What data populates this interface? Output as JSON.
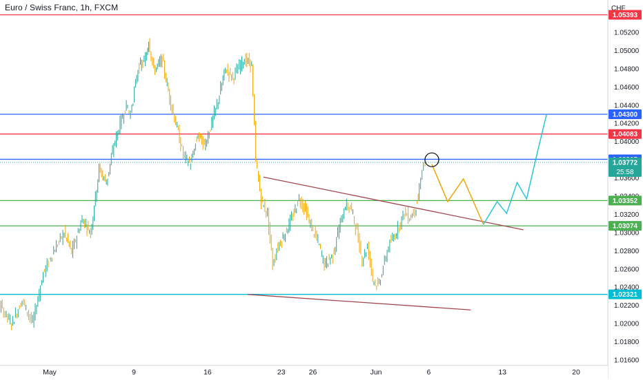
{
  "header": {
    "symbol_title": "Euro / Swiss Franc, 1h, FXCM"
  },
  "axis": {
    "currency": "CHF"
  },
  "chart_data": {
    "type": "line",
    "title": "Euro / Swiss Franc, 1h, FXCM",
    "y_unit": "CHF",
    "ylim": [
      1.0155,
      1.0548
    ],
    "y_ticks": [
      "1.05200",
      "1.05000",
      "1.04800",
      "1.04600",
      "1.04400",
      "1.04200",
      "1.04000",
      "1.03800",
      "1.03600",
      "1.03400",
      "1.03200",
      "1.03000",
      "1.02800",
      "1.02600",
      "1.02400",
      "1.02200",
      "1.02000",
      "1.01800",
      "1.01600"
    ],
    "x_ticks": [
      {
        "label": "May",
        "day": 1
      },
      {
        "label": "9",
        "day": 9
      },
      {
        "label": "16",
        "day": 16
      },
      {
        "label": "23",
        "day": 23
      },
      {
        "label": "26",
        "day": 26
      },
      {
        "label": "Jun",
        "day": 32
      },
      {
        "label": "6",
        "day": 37
      },
      {
        "label": "13",
        "day": 44
      },
      {
        "label": "20",
        "day": 51
      }
    ],
    "price_path": [
      [
        -5.8,
        1.024
      ],
      [
        -4.5,
        1.0228
      ],
      [
        -3.5,
        1.0218
      ],
      [
        -2.5,
        1.02
      ],
      [
        -1.5,
        1.0226
      ],
      [
        -0.5,
        1.02
      ],
      [
        0.5,
        1.0255
      ],
      [
        1.5,
        1.028
      ],
      [
        2.5,
        1.03
      ],
      [
        3.2,
        1.0278
      ],
      [
        4.2,
        1.0315
      ],
      [
        5.0,
        1.03
      ],
      [
        5.8,
        1.037
      ],
      [
        6.5,
        1.0355
      ],
      [
        7.2,
        1.0395
      ],
      [
        7.8,
        1.042
      ],
      [
        8.4,
        1.044
      ],
      [
        8.8,
        1.043
      ],
      [
        9.5,
        1.048
      ],
      [
        10.2,
        1.049
      ],
      [
        10.5,
        1.0512
      ],
      [
        11.0,
        1.0478
      ],
      [
        11.8,
        1.049
      ],
      [
        12.5,
        1.0448
      ],
      [
        13.2,
        1.0415
      ],
      [
        13.8,
        1.0385
      ],
      [
        14.5,
        1.0375
      ],
      [
        15.2,
        1.0408
      ],
      [
        15.8,
        1.0395
      ],
      [
        16.5,
        1.042
      ],
      [
        17.0,
        1.044
      ],
      [
        17.8,
        1.048
      ],
      [
        18.5,
        1.047
      ],
      [
        19.5,
        1.049
      ],
      [
        20.3,
        1.0485
      ],
      [
        20.7,
        1.038
      ],
      [
        21.2,
        1.0335
      ],
      [
        21.8,
        1.032
      ],
      [
        22.3,
        1.0265
      ],
      [
        22.8,
        1.0285
      ],
      [
        23.5,
        1.03
      ],
      [
        24.2,
        1.0318
      ],
      [
        24.8,
        1.0338
      ],
      [
        25.4,
        1.0325
      ],
      [
        26.0,
        1.0305
      ],
      [
        26.6,
        1.029
      ],
      [
        27.2,
        1.0265
      ],
      [
        28.0,
        1.0275
      ],
      [
        28.6,
        1.0305
      ],
      [
        29.2,
        1.033
      ],
      [
        29.8,
        1.0325
      ],
      [
        30.3,
        1.03
      ],
      [
        30.8,
        1.027
      ],
      [
        31.3,
        1.0285
      ],
      [
        31.8,
        1.025
      ],
      [
        32.3,
        1.024
      ],
      [
        32.8,
        1.0262
      ],
      [
        33.3,
        1.0285
      ],
      [
        33.8,
        1.0295
      ],
      [
        34.3,
        1.0308
      ],
      [
        34.8,
        1.0322
      ],
      [
        35.3,
        1.0316
      ],
      [
        35.8,
        1.0325
      ],
      [
        36.1,
        1.0338
      ],
      [
        36.5,
        1.037
      ],
      [
        36.8,
        1.03772
      ]
    ],
    "horizontal_levels": [
      {
        "label": "1.05393",
        "value": 1.05393,
        "color": "#f23645"
      },
      {
        "label": "1.04300",
        "value": 1.043,
        "color": "#2962ff"
      },
      {
        "label": "1.04083",
        "value": 1.04083,
        "color": "#f23645"
      },
      {
        "label": "1.03805",
        "value": 1.03805,
        "color": "#2962ff"
      },
      {
        "label": "1.03352",
        "value": 1.03352,
        "color": "#4caf50"
      },
      {
        "label": "1.03074",
        "value": 1.03074,
        "color": "#4caf50"
      },
      {
        "label": "1.02321",
        "value": 1.02321,
        "color": "#00bcd4"
      }
    ],
    "current_price": {
      "label": "1.03772",
      "countdown": "25:58",
      "value": 1.03772,
      "color": "#26a69a"
    },
    "trendlines": [
      {
        "from": [
          21.3,
          1.0361
        ],
        "to": [
          46.0,
          1.0303
        ],
        "color": "#a1454d"
      },
      {
        "from": [
          19.8,
          1.0232
        ],
        "to": [
          41.0,
          1.0215
        ],
        "color": "#a1454d"
      }
    ],
    "projections": [
      {
        "color": "#f0a500",
        "points": [
          [
            37.3,
            1.0375
          ],
          [
            38.8,
            1.0334
          ],
          [
            40.3,
            1.0359
          ],
          [
            42.2,
            1.0309
          ]
        ]
      },
      {
        "color": "#26c6da",
        "points": [
          [
            42.2,
            1.0309
          ],
          [
            43.5,
            1.0334
          ],
          [
            44.4,
            1.0321
          ],
          [
            45.4,
            1.0355
          ],
          [
            46.3,
            1.0337
          ],
          [
            47.3,
            1.0387
          ],
          [
            48.2,
            1.043
          ]
        ]
      }
    ],
    "marker": {
      "type": "circle",
      "x": 37.3,
      "y": 1.038
    },
    "grid": false,
    "ylabel": "CHF"
  }
}
